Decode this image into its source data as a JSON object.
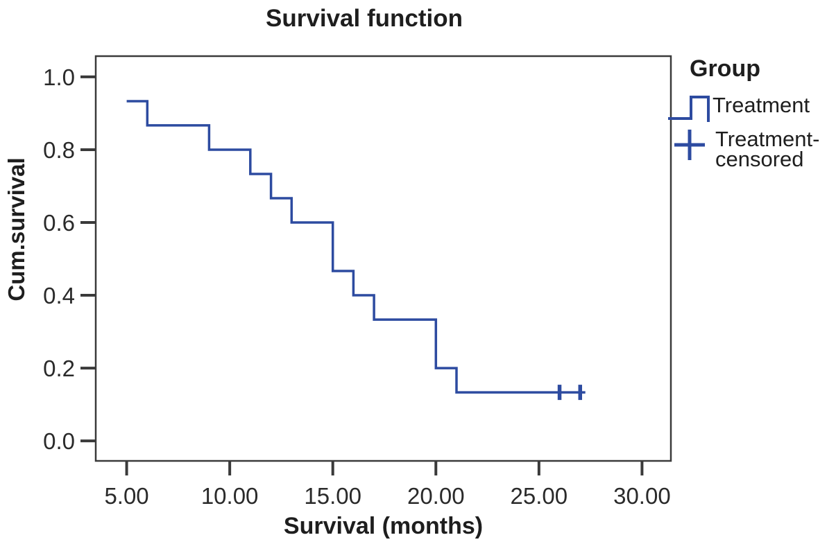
{
  "chart_data": {
    "type": "line",
    "subtype": "kaplan-meier-step",
    "title": "Survival function",
    "xlabel": "Survival (months)",
    "ylabel": "Cum.survival",
    "xlim": [
      3.5,
      31.4
    ],
    "ylim": [
      -0.055,
      1.057
    ],
    "grid": false,
    "x_ticks": {
      "values": [
        5,
        10,
        15,
        20,
        25,
        30
      ],
      "labels": [
        "5.00",
        "10.00",
        "15.00",
        "20.00",
        "25.00",
        "30.00"
      ]
    },
    "y_ticks": {
      "values": [
        0.0,
        0.2,
        0.4,
        0.6,
        0.8,
        1.0
      ],
      "labels": [
        "0.0",
        "0.2",
        "0.4",
        "0.6",
        "0.8",
        "1.0"
      ]
    },
    "series": [
      {
        "name": "Treatment",
        "color": "#2d4ba0",
        "step_points": [
          [
            5,
            0.9333
          ],
          [
            6,
            0.9333
          ],
          [
            6,
            0.8667
          ],
          [
            9,
            0.8667
          ],
          [
            9,
            0.8
          ],
          [
            11,
            0.8
          ],
          [
            11,
            0.7333
          ],
          [
            12,
            0.7333
          ],
          [
            12,
            0.6667
          ],
          [
            13,
            0.6667
          ],
          [
            13,
            0.6
          ],
          [
            15,
            0.6
          ],
          [
            15,
            0.4667
          ],
          [
            16,
            0.4667
          ],
          [
            16,
            0.4
          ],
          [
            17,
            0.4
          ],
          [
            17,
            0.3333
          ],
          [
            20,
            0.3333
          ],
          [
            20,
            0.2
          ],
          [
            21,
            0.2
          ],
          [
            21,
            0.1333
          ],
          [
            27.25,
            0.1333
          ]
        ]
      }
    ],
    "censored_points": {
      "name": "Treatment-censored",
      "color": "#2d4ba0",
      "points": [
        [
          26,
          0.1333
        ],
        [
          27,
          0.1333
        ]
      ]
    },
    "legend": {
      "title": "Group",
      "position": "right-top",
      "items": [
        {
          "label": "Treatment",
          "symbol": "step-line-icon",
          "color": "#2d4ba0"
        },
        {
          "label": "Treatment-censored",
          "line1": "Treatment-",
          "line2": "censored",
          "symbol": "plus-icon",
          "color": "#2d4ba0"
        }
      ]
    },
    "colors": {
      "curve": "#2d4ba0",
      "axis": "#3a3a3a",
      "tick_text": "#2a2a2a",
      "text": "#1e1e1e",
      "background": "#ffffff"
    }
  }
}
